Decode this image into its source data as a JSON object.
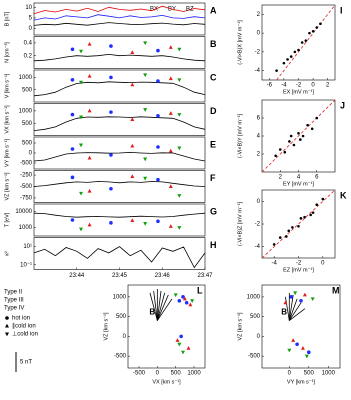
{
  "time_axis": {
    "xlim": [
      43,
      47
    ],
    "xticks": [
      {
        "value": 44,
        "label": "23:44"
      },
      {
        "value": 45,
        "label": "23:45"
      },
      {
        "value": 46,
        "label": "23:46"
      },
      {
        "value": 47,
        "label": "23:47"
      }
    ],
    "x": [
      43,
      43.25,
      43.5,
      43.75,
      44,
      44.25,
      44.5,
      44.75,
      45,
      45.25,
      45.5,
      45.75,
      46,
      46.25,
      46.5,
      46.75,
      47
    ]
  },
  "chart_data": [
    {
      "type": "line",
      "label": "A",
      "ylabel": "B [nT]",
      "ylim": [
        -3,
        12
      ],
      "yticks": [
        0,
        5,
        10
      ],
      "series": [
        {
          "name": "BX",
          "color": "#000000",
          "values": [
            1.5,
            2,
            1.8,
            2.5,
            2,
            1.6,
            2.2,
            2.8,
            2.4,
            2,
            1.9,
            2.3,
            2.6,
            2.1,
            1.8,
            2.4,
            2
          ]
        },
        {
          "name": "BY",
          "color": "#1a1aff",
          "values": [
            4,
            5,
            4.5,
            6,
            5.5,
            5,
            6.5,
            5.8,
            5,
            6,
            5.2,
            5.5,
            6.2,
            5,
            4.8,
            5.6,
            5
          ]
        },
        {
          "name": "BZ",
          "color": "#e00000",
          "values": [
            7,
            8.5,
            7.8,
            9,
            8.2,
            9.5,
            8,
            10,
            9,
            8.6,
            9.2,
            8.4,
            10.5,
            9,
            8,
            9.4,
            8.8
          ]
        }
      ]
    },
    {
      "type": "line",
      "label": "B",
      "ylabel": "N [cm⁻³]",
      "ylim": [
        0,
        0.5
      ],
      "yticks": [
        0.2,
        0.4
      ],
      "series": [
        {
          "color": "#000000",
          "values": [
            0.12,
            0.13,
            0.15,
            0.18,
            0.2,
            0.19,
            0.2,
            0.22,
            0.2,
            0.21,
            0.2,
            0.19,
            0.2,
            0.18,
            0.15,
            0.13,
            0.12
          ]
        }
      ],
      "points": [
        {
          "color": "#1f2fff",
          "marker": "circle",
          "x": [
            43.9,
            44.8,
            45.9
          ],
          "values": [
            0.3,
            0.35,
            0.28
          ]
        },
        {
          "color": "#e02020",
          "marker": "triangle",
          "x": [
            44.3,
            45.3,
            46.2
          ],
          "values": [
            0.38,
            0.25,
            0.33
          ]
        },
        {
          "color": "#10a010",
          "marker": "down",
          "x": [
            44.1,
            45.6,
            46.4
          ],
          "values": [
            0.27,
            0.4,
            0.3
          ]
        }
      ]
    },
    {
      "type": "line",
      "label": "C",
      "ylabel": "V [km s⁻¹]",
      "ylim": [
        0,
        1300
      ],
      "yticks": [
        500,
        1000
      ],
      "series": [
        {
          "color": "#000000",
          "values": [
            250,
            300,
            400,
            600,
            750,
            800,
            780,
            820,
            800,
            790,
            810,
            800,
            780,
            760,
            600,
            400,
            300
          ]
        }
      ],
      "points": [
        {
          "color": "#1f2fff",
          "marker": "circle",
          "x": [
            43.9,
            44.8,
            45.9
          ],
          "values": [
            900,
            1000,
            850
          ]
        },
        {
          "color": "#e02020",
          "marker": "triangle",
          "x": [
            44.3,
            45.3,
            46.2
          ],
          "values": [
            1050,
            700,
            950
          ]
        },
        {
          "color": "#10a010",
          "marker": "down",
          "x": [
            44.1,
            45.6,
            46.4
          ],
          "values": [
            800,
            1100,
            900
          ]
        }
      ]
    },
    {
      "type": "line",
      "label": "D",
      "ylabel": "VX [km s⁻¹]",
      "ylim": [
        0,
        1300
      ],
      "yticks": [
        500,
        1000
      ],
      "series": [
        {
          "color": "#000000",
          "values": [
            200,
            250,
            350,
            550,
            700,
            750,
            740,
            760,
            750,
            730,
            760,
            740,
            720,
            700,
            550,
            350,
            250
          ]
        }
      ],
      "points": [
        {
          "color": "#1f2fff",
          "marker": "circle",
          "x": [
            43.9,
            44.8,
            45.9
          ],
          "values": [
            850,
            950,
            800
          ]
        },
        {
          "color": "#e02020",
          "marker": "triangle",
          "x": [
            44.3,
            45.3,
            46.2
          ],
          "values": [
            1000,
            650,
            900
          ]
        },
        {
          "color": "#10a010",
          "marker": "down",
          "x": [
            44.1,
            45.6,
            46.4
          ],
          "values": [
            750,
            1050,
            850
          ]
        }
      ]
    },
    {
      "type": "line",
      "label": "E",
      "ylabel": "VY [km s⁻¹]",
      "ylim": [
        -800,
        800
      ],
      "yticks": [
        -500,
        0,
        500
      ],
      "series": [
        {
          "color": "#000000",
          "values": [
            -400,
            -350,
            -200,
            -50,
            0,
            20,
            10,
            -10,
            0,
            30,
            0,
            -20,
            10,
            0,
            -150,
            -300,
            -400
          ]
        }
      ],
      "points": [
        {
          "color": "#1f2fff",
          "marker": "circle",
          "x": [
            43.9,
            44.8,
            45.9
          ],
          "values": [
            200,
            -100,
            300
          ]
        },
        {
          "color": "#e02020",
          "marker": "triangle",
          "x": [
            44.3,
            45.3,
            46.2
          ],
          "values": [
            -250,
            350,
            100
          ]
        },
        {
          "color": "#10a010",
          "marker": "down",
          "x": [
            44.1,
            45.6,
            46.4
          ],
          "values": [
            400,
            -300,
            250
          ]
        }
      ]
    },
    {
      "type": "line",
      "label": "F",
      "ylabel": "VZ [km s⁻¹]",
      "ylim": [
        -850,
        -150
      ],
      "yticks": [
        -750,
        -500,
        -250
      ],
      "series": [
        {
          "color": "#000000",
          "values": [
            -500,
            -480,
            -450,
            -420,
            -400,
            -410,
            -390,
            -400,
            -420,
            -400,
            -410,
            -390,
            -400,
            -430,
            -460,
            -490,
            -500
          ]
        }
      ],
      "points": [
        {
          "color": "#1f2fff",
          "marker": "circle",
          "x": [
            43.9,
            44.8,
            45.9
          ],
          "values": [
            -300,
            -550,
            -350
          ]
        },
        {
          "color": "#e02020",
          "marker": "triangle",
          "x": [
            44.3,
            45.3,
            46.2
          ],
          "values": [
            -600,
            -280,
            -500
          ]
        },
        {
          "color": "#10a010",
          "marker": "down",
          "x": [
            44.1,
            45.6,
            46.4
          ],
          "values": [
            -650,
            -320,
            -700
          ]
        }
      ]
    },
    {
      "type": "line",
      "label": "G",
      "ylabel": "T [eV]",
      "log": true,
      "ylim": [
        300,
        30000
      ],
      "yticks": [
        1000,
        10000
      ],
      "series": [
        {
          "color": "#000000",
          "values": [
            8000,
            7500,
            6000,
            5000,
            4500,
            4800,
            5000,
            4700,
            4500,
            4800,
            5200,
            4900,
            4600,
            5000,
            6000,
            7000,
            8000
          ]
        }
      ],
      "points": [
        {
          "color": "#1f2fff",
          "marker": "circle",
          "x": [
            43.9,
            44.8,
            45.9
          ],
          "values": [
            3000,
            2000,
            2500
          ]
        },
        {
          "color": "#e02020",
          "marker": "triangle",
          "x": [
            44.3,
            45.3,
            46.2
          ],
          "values": [
            1500,
            2800,
            1200
          ]
        },
        {
          "color": "#10a010",
          "marker": "down",
          "x": [
            44.1,
            45.6,
            46.4
          ],
          "values": [
            800,
            1800,
            1000
          ]
        }
      ]
    },
    {
      "type": "line",
      "label": "H",
      "ylabel": "κ²",
      "log": true,
      "ylim": [
        0.03,
        100
      ],
      "yticks": [
        {
          "value": 0.1,
          "label": "10⁻¹"
        },
        {
          "value": 10,
          "label": "10¹"
        }
      ],
      "series": [
        {
          "color": "#000000",
          "values": [
            2,
            5,
            1,
            8,
            3,
            0.5,
            6,
            2,
            10,
            1,
            4,
            0.2,
            7,
            3,
            9,
            0.05,
            2
          ]
        }
      ]
    },
    {
      "type": "scatter",
      "label": "I",
      "xlabel": "EX [mV m⁻¹]",
      "ylabel": "(-Vi×B)X [mV m⁻¹]",
      "xlim": [
        -7,
        3
      ],
      "ylim": [
        -5,
        3
      ],
      "xticks": [
        -6,
        -4,
        -2,
        0,
        2
      ],
      "yticks": [
        -4,
        -2,
        0,
        2
      ],
      "x": [
        -5,
        -4,
        -3,
        -2.5,
        -2,
        -1.5,
        -1,
        -0.5,
        0,
        0.5,
        1,
        -3.5
      ],
      "values": [
        -4,
        -3.2,
        -2.5,
        -2,
        -1.8,
        -1,
        -0.8,
        0,
        0.2,
        0.6,
        1,
        -2.8
      ]
    },
    {
      "type": "scatter",
      "label": "J",
      "xlabel": "EY [mV m⁻¹]",
      "ylabel": "(-Vi×B)Y [mV m⁻¹]",
      "xlim": [
        0,
        8
      ],
      "ylim": [
        0,
        8
      ],
      "xticks": [
        2,
        4,
        6
      ],
      "yticks": [
        2,
        4,
        6
      ],
      "x": [
        1.5,
        2,
        2.5,
        3,
        3.5,
        4,
        4.5,
        5,
        5.5,
        6,
        3.2,
        4.2
      ],
      "values": [
        1.8,
        2.5,
        2.2,
        3.4,
        3,
        4.3,
        4,
        5.2,
        4.8,
        6,
        4,
        3.6
      ]
    },
    {
      "type": "scatter",
      "label": "K",
      "xlabel": "EZ [mV m⁻¹]",
      "ylabel": "(-Vi×B)Z [mV m⁻¹]",
      "xlim": [
        -5,
        1
      ],
      "ylim": [
        -5,
        1
      ],
      "xticks": [
        -4,
        -2,
        0
      ],
      "yticks": [
        -4,
        -2,
        0
      ],
      "x": [
        -4,
        -3.5,
        -3,
        -2.5,
        -2,
        -1.5,
        -1,
        -0.5,
        0,
        -2.8,
        -1.8,
        -0.8
      ],
      "values": [
        -3.8,
        -3.2,
        -3.1,
        -2.3,
        -2.2,
        -1.4,
        -1.2,
        -0.3,
        0.2,
        -2.6,
        -1.5,
        -1
      ]
    },
    {
      "type": "hodogram",
      "label": "L",
      "xlabel": "VX [km s⁻¹]",
      "ylabel": "VZ [km s⁻¹]",
      "annotation": "B",
      "xlim": [
        -800,
        1300
      ],
      "ylim": [
        -800,
        1300
      ],
      "xticks": [
        -500,
        0,
        500,
        1000
      ],
      "yticks": [
        -500,
        0,
        500,
        1000
      ],
      "vector_origin": [
        0,
        400
      ],
      "vectors": {
        "x": [
          -200,
          -100,
          0,
          100,
          200,
          300,
          400
        ],
        "y": [
          1100,
          1150,
          1200,
          1150,
          1100,
          1050,
          950
        ]
      },
      "points": [
        {
          "color": "#1f2fff",
          "marker": "circle",
          "x": [
            600,
            700,
            800,
            650
          ],
          "values": [
            900,
            1000,
            850,
            0
          ]
        },
        {
          "color": "#e02020",
          "marker": "triangle",
          "x": [
            750,
            900,
            550,
            850
          ],
          "values": [
            950,
            800,
            -100,
            -300
          ]
        },
        {
          "color": "#10a010",
          "marker": "down",
          "x": [
            500,
            950,
            700,
            600
          ],
          "values": [
            1050,
            900,
            -400,
            -200
          ]
        }
      ]
    },
    {
      "type": "hodogram",
      "label": "M",
      "xlabel": "VY [km s⁻¹]",
      "ylabel": "VZ [km s⁻¹]",
      "annotation": "B",
      "xlim": [
        -700,
        1300
      ],
      "ylim": [
        -800,
        1300
      ],
      "xticks": [
        0,
        500,
        1000
      ],
      "yticks": [
        -500,
        0,
        500,
        1000
      ],
      "vector_origin": [
        0,
        400
      ],
      "vectors": {
        "x": [
          -100,
          0,
          100,
          200,
          300,
          400
        ],
        "y": [
          1000,
          1100,
          1050,
          950,
          850,
          700
        ]
      },
      "points": [
        {
          "color": "#1f2fff",
          "marker": "circle",
          "x": [
            50,
            300,
            200,
            500
          ],
          "values": [
            1000,
            900,
            -200,
            -400
          ]
        },
        {
          "color": "#e02020",
          "marker": "triangle",
          "x": [
            400,
            -100,
            350,
            100
          ],
          "values": [
            1050,
            850,
            -300,
            -100
          ]
        },
        {
          "color": "#10a010",
          "marker": "down",
          "x": [
            600,
            150,
            450,
            0
          ],
          "values": [
            950,
            1100,
            -500,
            -350
          ]
        }
      ]
    }
  ],
  "legend": {
    "types": [
      {
        "name": "Type II",
        "color": "#1f2fff"
      },
      {
        "name": "Type III",
        "color": "#e02020"
      },
      {
        "name": "Type IV",
        "color": "#10a010"
      }
    ],
    "species": [
      {
        "name": "hot ion",
        "marker": "circle"
      },
      {
        "name": "∥cold ion",
        "marker": "triangle"
      },
      {
        "name": "⊥cold ion",
        "marker": "down"
      }
    ]
  },
  "scale_bar": {
    "label": "5 nT"
  }
}
